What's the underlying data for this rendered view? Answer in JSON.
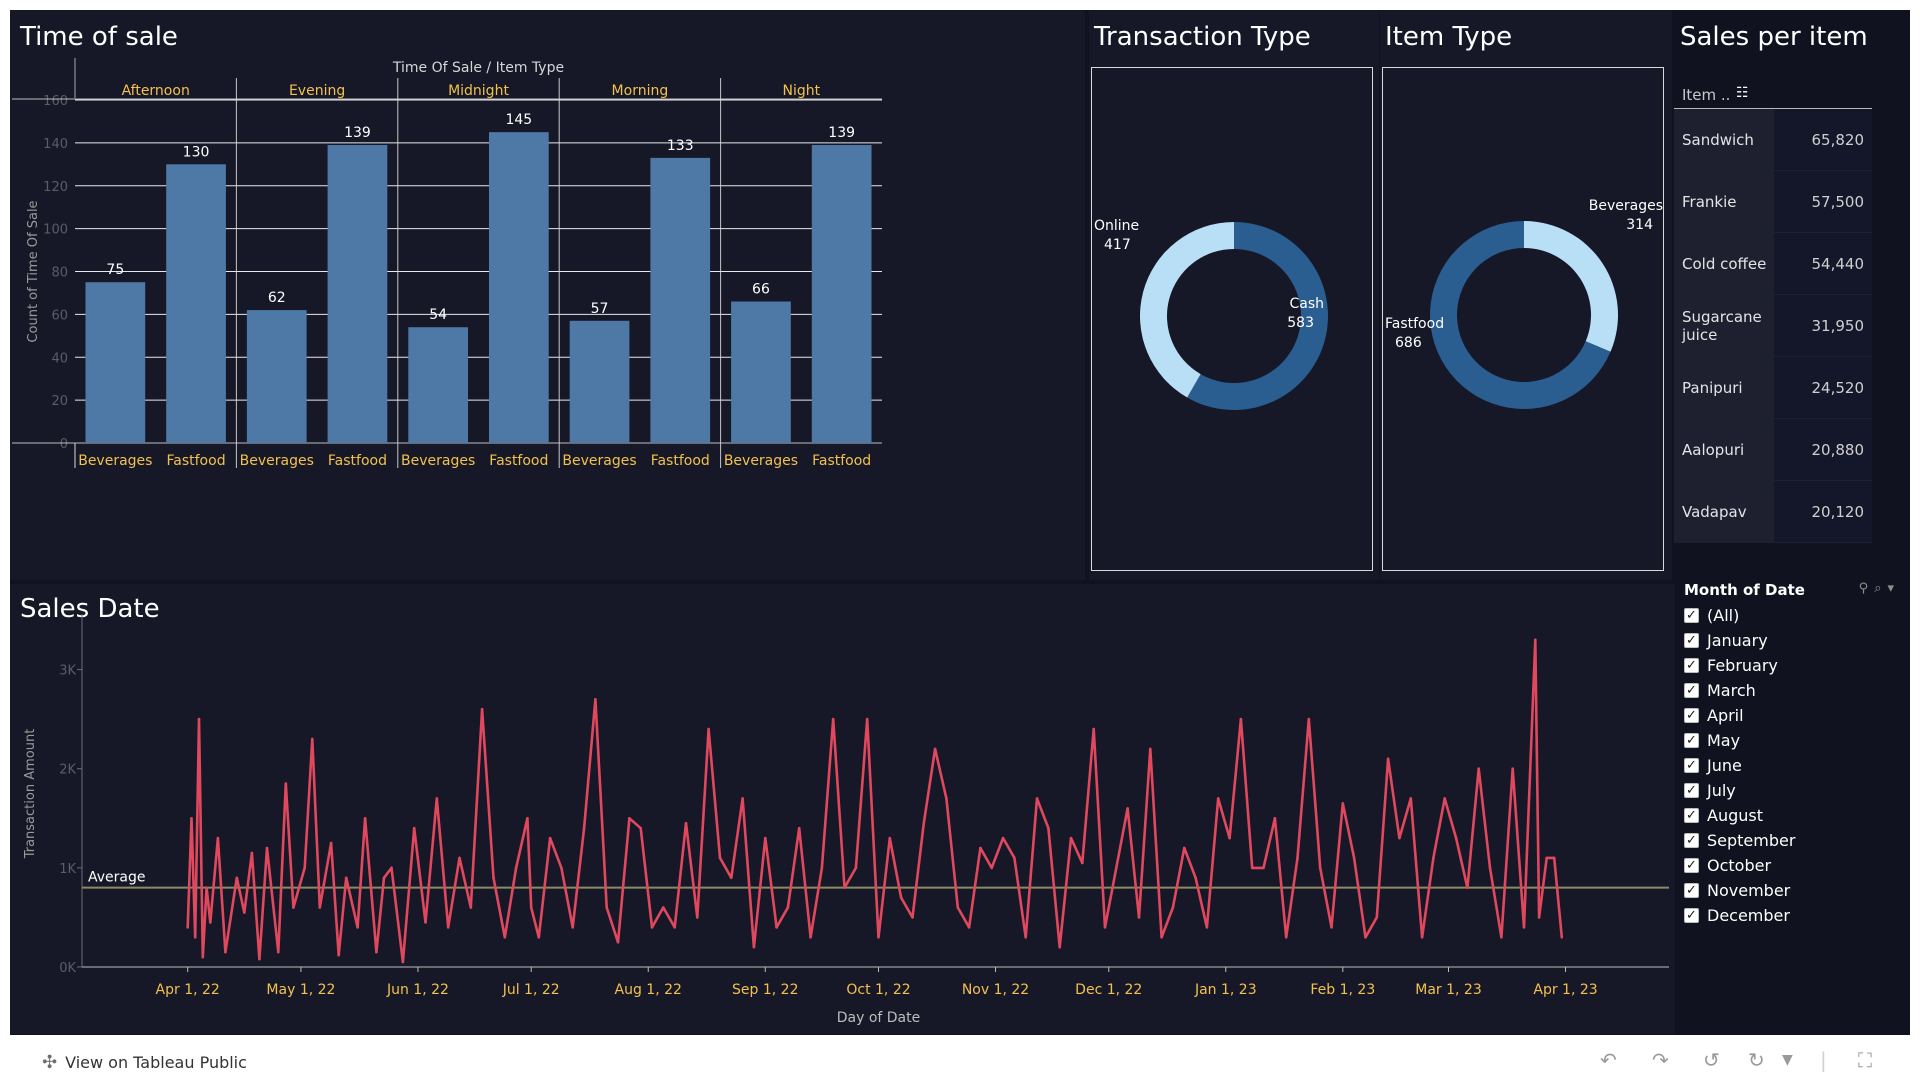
{
  "panels": {
    "time_of_sale": "Time of sale",
    "transaction_type": "Transaction Type",
    "item_type": "Item Type",
    "sales_per_item": "Sales per item",
    "sales_date": "Sales Date"
  },
  "colors": {
    "background": "#10131f",
    "panel": "#161827",
    "bar": "#4e79a7",
    "line": "#e0485e",
    "average": "#8a8a63",
    "category_text": "#f2c14e",
    "donut_light": "#b9dff6",
    "donut_dark": "#2a5d90"
  },
  "chart_data": [
    {
      "type": "bar",
      "title": "Time of sale",
      "column_header": "Time Of Sale / Item Type",
      "groups": [
        "Afternoon",
        "Evening",
        "Midnight",
        "Morning",
        "Night"
      ],
      "series": [
        {
          "name": "Beverages",
          "values": [
            75,
            62,
            54,
            57,
            66
          ]
        },
        {
          "name": "Fastfood",
          "values": [
            130,
            139,
            145,
            133,
            139
          ]
        }
      ],
      "ylabel": "Count of Time Of Sale",
      "ylim": [
        0,
        160
      ],
      "yticks": [
        "0",
        "20",
        "40",
        "60",
        "80",
        "100",
        "120",
        "140",
        "160"
      ],
      "grid": true
    },
    {
      "type": "pie",
      "title": "Transaction Type",
      "donut": true,
      "slices": [
        {
          "label": "Cash",
          "value": 583,
          "color": "#2a5d90"
        },
        {
          "label": "Online",
          "value": 417,
          "color": "#b9dff6"
        }
      ]
    },
    {
      "type": "pie",
      "title": "Item Type",
      "donut": true,
      "slices": [
        {
          "label": "Beverages",
          "value": 314,
          "color": "#b9dff6"
        },
        {
          "label": "Fastfood",
          "value": 686,
          "color": "#2a5d90"
        }
      ]
    },
    {
      "type": "table",
      "title": "Sales per item",
      "header": "Item ..",
      "rows": [
        {
          "item": "Sandwich",
          "value": "65,820"
        },
        {
          "item": "Frankie",
          "value": "57,500"
        },
        {
          "item": "Cold coffee",
          "value": "54,440"
        },
        {
          "item": "Sugarcane juice",
          "value": "31,950"
        },
        {
          "item": "Panipuri",
          "value": "24,520"
        },
        {
          "item": "Aalopuri",
          "value": "20,880"
        },
        {
          "item": "Vadapav",
          "value": "20,120"
        }
      ]
    },
    {
      "type": "line",
      "title": "Sales Date",
      "xlabel": "Day of Date",
      "ylabel": "Transaction Amount",
      "xlim": [
        "2022-03-04",
        "2023-04-30"
      ],
      "ylim": [
        0,
        3500
      ],
      "yticks": [
        "0K",
        "1K",
        "2K",
        "3K"
      ],
      "xticks": [
        "Apr 1, 22",
        "May 1, 22",
        "Jun 1, 22",
        "Jul 1, 22",
        "Aug 1, 22",
        "Sep 1, 22",
        "Oct 1, 22",
        "Nov 1, 22",
        "Dec 1, 22",
        "Jan 1, 23",
        "Feb 1, 23",
        "Mar 1, 23",
        "Apr 1, 23"
      ],
      "reference_line": {
        "label": "Average",
        "value": 800
      },
      "series": [
        {
          "x": [
            "2022-04-01",
            "2022-04-02",
            "2022-04-03",
            "2022-04-04",
            "2022-04-05",
            "2022-04-06",
            "2022-04-07",
            "2022-04-09",
            "2022-04-11",
            "2022-04-14",
            "2022-04-16",
            "2022-04-18",
            "2022-04-20",
            "2022-04-22",
            "2022-04-25",
            "2022-04-27",
            "2022-04-29",
            "2022-05-02",
            "2022-05-04",
            "2022-05-06",
            "2022-05-09",
            "2022-05-11",
            "2022-05-13",
            "2022-05-16",
            "2022-05-18",
            "2022-05-21",
            "2022-05-23",
            "2022-05-25",
            "2022-05-28",
            "2022-05-31",
            "2022-06-03",
            "2022-06-06",
            "2022-06-09",
            "2022-06-12",
            "2022-06-15",
            "2022-06-18",
            "2022-06-21",
            "2022-06-24",
            "2022-06-27",
            "2022-06-30",
            "2022-07-01",
            "2022-07-03",
            "2022-07-06",
            "2022-07-09",
            "2022-07-12",
            "2022-07-15",
            "2022-07-18",
            "2022-07-21",
            "2022-07-24",
            "2022-07-27",
            "2022-07-30",
            "2022-08-02",
            "2022-08-05",
            "2022-08-08",
            "2022-08-11",
            "2022-08-14",
            "2022-08-17",
            "2022-08-20",
            "2022-08-23",
            "2022-08-26",
            "2022-08-29",
            "2022-09-01",
            "2022-09-04",
            "2022-09-07",
            "2022-09-10",
            "2022-09-13",
            "2022-09-16",
            "2022-09-19",
            "2022-09-22",
            "2022-09-25",
            "2022-09-28",
            "2022-10-01",
            "2022-10-04",
            "2022-10-07",
            "2022-10-10",
            "2022-10-13",
            "2022-10-16",
            "2022-10-19",
            "2022-10-22",
            "2022-10-25",
            "2022-10-28",
            "2022-10-31",
            "2022-11-03",
            "2022-11-06",
            "2022-11-09",
            "2022-11-12",
            "2022-11-15",
            "2022-11-18",
            "2022-11-21",
            "2022-11-24",
            "2022-11-27",
            "2022-11-30",
            "2022-12-03",
            "2022-12-06",
            "2022-12-09",
            "2022-12-12",
            "2022-12-15",
            "2022-12-18",
            "2022-12-21",
            "2022-12-24",
            "2022-12-27",
            "2022-12-30",
            "2023-01-02",
            "2023-01-05",
            "2023-01-08",
            "2023-01-11",
            "2023-01-14",
            "2023-01-17",
            "2023-01-20",
            "2023-01-23",
            "2023-01-26",
            "2023-01-29",
            "2023-02-01",
            "2023-02-04",
            "2023-02-07",
            "2023-02-10",
            "2023-02-13",
            "2023-02-16",
            "2023-02-19",
            "2023-02-22",
            "2023-02-25",
            "2023-02-28",
            "2023-03-03",
            "2023-03-06",
            "2023-03-09",
            "2023-03-12",
            "2023-03-15",
            "2023-03-18",
            "2023-03-21",
            "2023-03-24",
            "2023-03-25",
            "2023-03-27",
            "2023-03-29",
            "2023-03-31"
          ],
          "y": [
            400,
            1500,
            300,
            2500,
            100,
            800,
            450,
            1300,
            150,
            900,
            550,
            1150,
            80,
            1200,
            150,
            1850,
            600,
            1000,
            2300,
            600,
            1250,
            120,
            900,
            400,
            1500,
            150,
            900,
            1000,
            50,
            1400,
            450,
            1700,
            400,
            1100,
            600,
            2600,
            900,
            300,
            1000,
            1500,
            600,
            300,
            1300,
            1000,
            400,
            1400,
            2700,
            600,
            250,
            1500,
            1400,
            400,
            600,
            400,
            1450,
            500,
            2400,
            1100,
            900,
            1700,
            200,
            1300,
            400,
            600,
            1400,
            300,
            1000,
            2500,
            800,
            1000,
            2500,
            300,
            1300,
            700,
            500,
            1450,
            2200,
            1700,
            600,
            400,
            1200,
            1000,
            1300,
            1100,
            300,
            1700,
            1400,
            200,
            1300,
            1050,
            2400,
            400,
            1000,
            1600,
            500,
            2200,
            300,
            600,
            1200,
            900,
            400,
            1700,
            1300,
            2500,
            1000,
            1000,
            1500,
            300,
            1100,
            2500,
            1000,
            400,
            1650,
            1100,
            300,
            500,
            2100,
            1300,
            1700,
            300,
            1100,
            1700,
            1300,
            800,
            2000,
            1000,
            300,
            2000,
            400,
            3300,
            500,
            1100,
            1100,
            300
          ]
        }
      ]
    }
  ],
  "filter": {
    "title": "Month of Date",
    "options": [
      "(All)",
      "January",
      "February",
      "March",
      "April",
      "May",
      "June",
      "July",
      "August",
      "September",
      "October",
      "November",
      "December"
    ]
  },
  "footer": {
    "view_label": "View on Tableau Public",
    "logo_icon": "tableau-logo-icon",
    "toolbar_icons": [
      "undo-icon",
      "redo-icon",
      "revert-icon",
      "refresh-icon",
      "dropdown-icon",
      "fullscreen-icon"
    ]
  }
}
